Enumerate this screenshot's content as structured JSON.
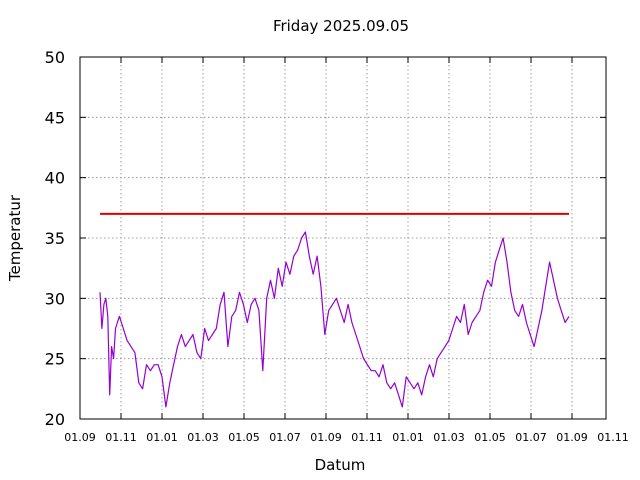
{
  "chart_data": {
    "type": "line",
    "title": "Friday 2025.09.05",
    "xlabel": "Datum",
    "ylabel": "Temperatur",
    "ylim": [
      20,
      50
    ],
    "yticks": [
      "20",
      "25",
      "30",
      "35",
      "40",
      "45",
      "50"
    ],
    "xticks": [
      "01.09",
      "01.11",
      "01.01",
      "01.03",
      "01.05",
      "01.07",
      "01.09",
      "01.11",
      "01.01",
      "01.03",
      "01.05",
      "01.07",
      "01.09",
      "01.11"
    ],
    "grid": true,
    "series": [
      {
        "color": "#9400d3",
        "x": [
          1.0,
          1.05,
          1.1,
          1.15,
          1.2,
          1.25,
          1.3,
          1.35,
          1.4,
          1.45,
          1.5,
          1.6,
          1.7,
          1.8,
          1.9,
          2.0,
          2.1,
          2.2,
          2.3,
          2.4,
          2.5,
          2.6,
          2.7,
          2.8,
          2.9,
          3.0,
          3.1,
          3.2,
          3.3,
          3.4,
          3.5,
          3.6,
          3.7,
          3.8,
          3.9,
          4.0,
          4.1,
          4.2,
          4.3,
          4.4,
          4.5,
          4.6,
          4.7,
          4.8,
          4.9,
          5.0,
          5.1,
          5.2,
          5.3,
          5.4,
          5.5,
          5.6,
          5.7,
          5.8,
          5.9,
          6.0,
          6.1,
          6.2,
          6.3,
          6.4,
          6.5,
          6.6,
          6.7,
          6.8,
          6.9,
          7.0,
          7.1,
          7.2,
          7.3,
          7.4,
          7.5,
          7.6,
          7.7,
          7.8,
          7.9,
          8.0,
          8.1,
          8.2,
          8.3,
          8.4,
          8.5,
          8.6,
          8.7,
          8.8,
          8.9,
          9.0,
          9.1,
          9.2,
          9.3,
          9.4,
          9.5,
          9.6,
          9.7,
          9.8,
          9.9,
          10.0,
          10.1,
          10.2,
          10.3,
          10.4,
          10.5,
          10.6,
          10.7,
          10.8,
          10.9,
          11.0,
          11.1,
          11.2,
          11.3,
          11.4,
          11.5,
          11.6,
          11.7,
          11.8,
          11.9,
          12.0,
          12.1,
          12.2,
          12.3,
          12.4,
          12.5,
          12.6,
          12.7,
          12.8,
          12.9,
          13.0,
          13.1
        ],
        "y": [
          30.5,
          27.5,
          29.5,
          30.0,
          28.5,
          22.0,
          26.0,
          25.0,
          27.5,
          28.0,
          28.5,
          27.5,
          26.5,
          26.0,
          25.5,
          23.0,
          22.5,
          24.5,
          24.0,
          24.5,
          24.5,
          23.5,
          21.0,
          23.0,
          24.5,
          26.0,
          27.0,
          26.0,
          26.5,
          27.0,
          25.5,
          25.0,
          27.5,
          26.5,
          27.0,
          27.5,
          29.5,
          30.5,
          26.0,
          28.5,
          29.0,
          30.5,
          29.5,
          28.0,
          29.5,
          30.0,
          29.0,
          24.0,
          30.0,
          31.5,
          30.0,
          32.5,
          31.0,
          33.0,
          32.0,
          33.5,
          34.0,
          35.0,
          35.5,
          33.5,
          32.0,
          33.5,
          31.0,
          27.0,
          29.0,
          29.5,
          30.0,
          29.0,
          28.0,
          29.5,
          28.0,
          27.0,
          26.0,
          25.0,
          24.5,
          24.0,
          24.0,
          23.5,
          24.5,
          23.0,
          22.5,
          23.0,
          22.0,
          21.0,
          23.5,
          23.0,
          22.5,
          23.0,
          22.0,
          23.5,
          24.5,
          23.5,
          25.0,
          25.5,
          26.0,
          26.5,
          27.5,
          28.5,
          28.0,
          29.5,
          27.0,
          28.0,
          28.5,
          29.0,
          30.5,
          31.5,
          31.0,
          33.0,
          34.0,
          35.0,
          33.0,
          30.5,
          29.0,
          28.5,
          29.5,
          28.0,
          27.0,
          26.0,
          27.5,
          29.0,
          31.0,
          33.0,
          31.5,
          30.0,
          29.0,
          28.0,
          28.5
        ]
      },
      {
        "color": "#e00000",
        "x": [
          1.0,
          13.1
        ],
        "y": [
          37,
          37
        ]
      }
    ],
    "xlim": [
      0,
      13.0
    ]
  }
}
